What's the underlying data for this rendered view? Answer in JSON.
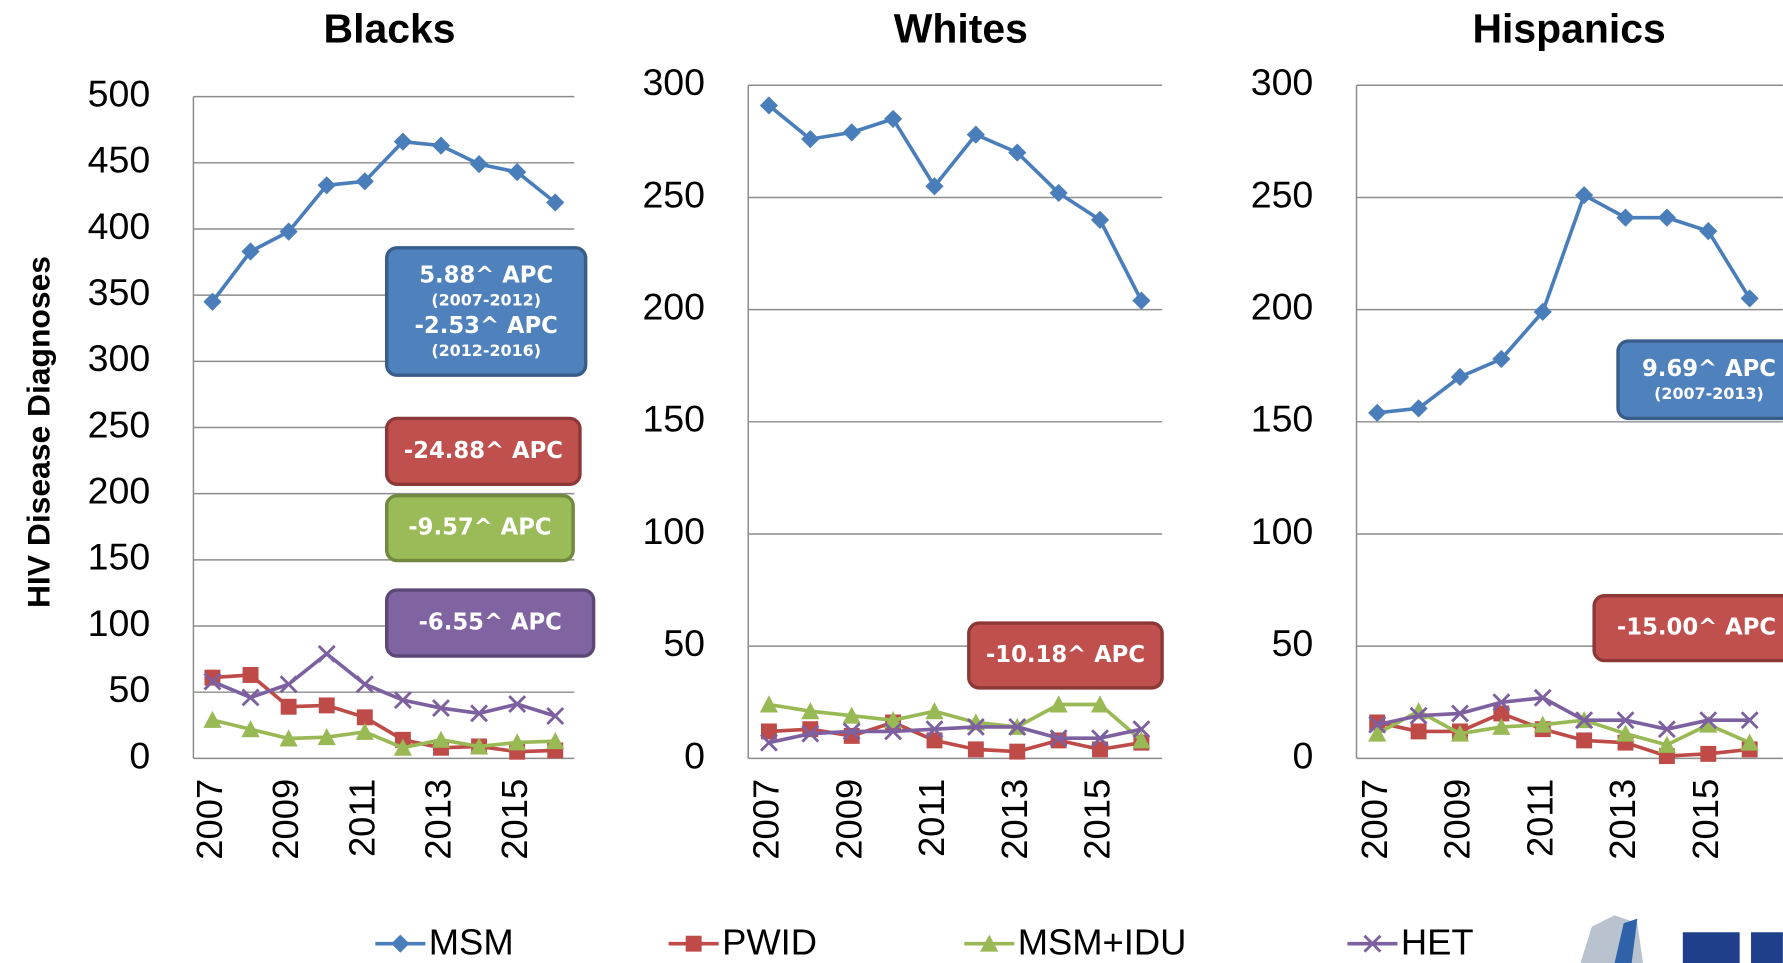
{
  "chart_data": [
    {
      "type": "line",
      "title": "Blacks",
      "y_label": "HIV Disease Diagnoses",
      "categories": [
        "2007",
        null,
        "2009",
        null,
        "2011",
        null,
        "2013",
        null,
        "2015",
        null
      ],
      "ylim": [
        0,
        500
      ],
      "yticks": [
        0,
        50,
        100,
        150,
        200,
        250,
        300,
        350,
        400,
        450,
        500
      ],
      "grid": true,
      "series": [
        {
          "name": "MSM",
          "color": "#4a7ebb",
          "values": [
            345,
            383,
            398,
            433,
            436,
            466,
            463,
            449,
            443,
            420
          ]
        },
        {
          "name": "PWID",
          "color": "#be4b48",
          "values": [
            61,
            63,
            39,
            40,
            31,
            14,
            8,
            9,
            5,
            6
          ]
        },
        {
          "name": "MSM+IDU",
          "color": "#98b954",
          "values": [
            29,
            22,
            15,
            16,
            20,
            8,
            14,
            9,
            12,
            13
          ]
        },
        {
          "name": "HET",
          "color": "#7d60a0",
          "values": [
            58,
            46,
            56,
            79,
            56,
            44,
            38,
            34,
            41,
            32
          ]
        }
      ],
      "annotations": [
        {
          "lines": [
            "5.88^ APC",
            "(2007-2012)",
            "-2.53^ APC",
            "(2012-2016)"
          ],
          "color": "#4f81bd"
        },
        {
          "lines": [
            "-24.88^ APC"
          ],
          "color": "#c0504d"
        },
        {
          "lines": [
            "-9.57^ APC"
          ],
          "color": "#9bbb59"
        },
        {
          "lines": [
            "-6.55^ APC"
          ],
          "color": "#8064a2"
        }
      ]
    },
    {
      "type": "line",
      "title": "Whites",
      "categories": [
        "2007",
        null,
        "2009",
        null,
        "2011",
        null,
        "2013",
        null,
        "2015",
        null
      ],
      "ylim": [
        0,
        300
      ],
      "yticks": [
        0,
        50,
        100,
        150,
        200,
        250,
        300
      ],
      "grid": true,
      "series": [
        {
          "color": "#4a7ebb",
          "values": [
            291,
            276,
            279,
            285,
            255,
            278,
            270,
            252,
            240,
            204
          ]
        },
        {
          "color": "#be4b48",
          "values": [
            12,
            13,
            10,
            16,
            8,
            4,
            3,
            8,
            4,
            7
          ]
        },
        {
          "color": "#98b954",
          "values": [
            24,
            21,
            19,
            17,
            21,
            16,
            14,
            24,
            24,
            8
          ]
        },
        {
          "color": "#7d60a0",
          "values": [
            7,
            11,
            12,
            12,
            13,
            14,
            14,
            9,
            9,
            13
          ]
        }
      ],
      "annotations": [
        {
          "lines": [
            "-10.18^ APC"
          ],
          "color": "#c0504d"
        }
      ]
    },
    {
      "type": "line",
      "title": "Hispanics",
      "categories": [
        "2007",
        null,
        "2009",
        null,
        "2011",
        null,
        "2013",
        null,
        "2015",
        null
      ],
      "ylim": [
        0,
        300
      ],
      "yticks": [
        0,
        50,
        100,
        150,
        200,
        250,
        300
      ],
      "grid": true,
      "series": [
        {
          "color": "#4a7ebb",
          "values": [
            154,
            156,
            170,
            178,
            199,
            251,
            241,
            241,
            235,
            205
          ]
        },
        {
          "color": "#be4b48",
          "values": [
            16,
            12,
            12,
            20,
            13,
            8,
            7,
            1,
            2,
            4
          ]
        },
        {
          "color": "#98b954",
          "values": [
            11,
            21,
            11,
            14,
            15,
            17,
            11,
            6,
            15,
            7
          ]
        },
        {
          "color": "#7d60a0",
          "values": [
            15,
            19,
            20,
            25,
            27,
            17,
            17,
            13,
            17,
            17
          ]
        }
      ],
      "annotations": [
        {
          "lines": [
            "9.69^ APC",
            "(2007-2013)"
          ],
          "color": "#4f81bd"
        },
        {
          "lines": [
            "-15.00^ APC"
          ],
          "color": "#c0504d"
        }
      ]
    }
  ]
}
